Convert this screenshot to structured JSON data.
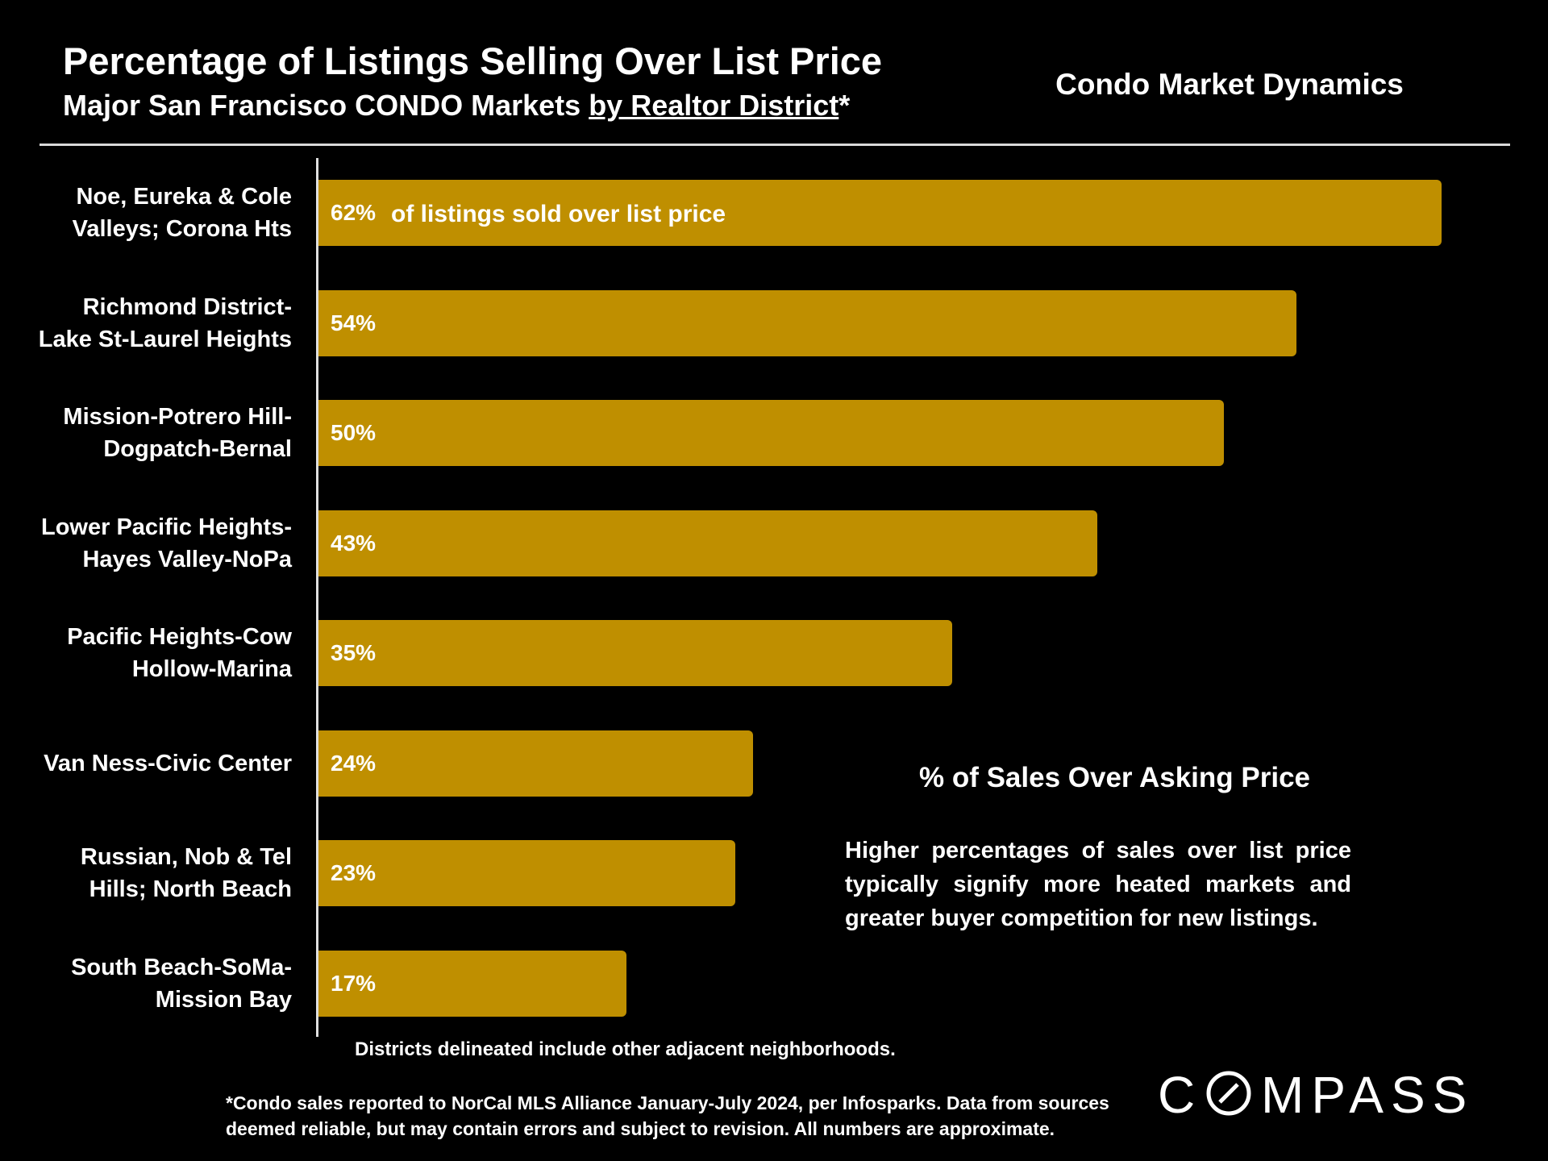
{
  "title": "Percentage of Listings Selling Over List Price",
  "subtitle_main": "Major San Francisco CONDO Markets ",
  "subtitle_link": "by Realtor District",
  "subtitle_end": "*",
  "header_right": "Condo Market Dynamics",
  "bar_note": "of listings sold over list price",
  "legend_title": "% of Sales Over Asking Price",
  "legend_note": "Higher percentages of sales over list price typically signify more heated markets and greater buyer competition for new listings.",
  "districts_note": "Districts delineated include other adjacent neighborhoods.",
  "footnote": "*Condo sales reported to NorCal MLS Alliance January-July 2024, per Infosparks. Data from sources deemed reliable, but may contain errors and subject to revision. All numbers are approximate.",
  "logo_text": "COMPASS",
  "colors": {
    "bar": "#bf8f00",
    "background": "#000000",
    "text": "#ffffff"
  },
  "chart_data": {
    "type": "bar",
    "orientation": "horizontal",
    "title": "Percentage of Listings Selling Over List Price",
    "categories": [
      [
        "Noe, Eureka & Cole",
        "Valleys; Corona Hts"
      ],
      [
        "Richmond District-",
        "Lake St-Laurel Heights"
      ],
      [
        "Mission-Potrero Hill-",
        "Dogpatch-Bernal"
      ],
      [
        "Lower Pacific Heights-",
        "Hayes Valley-NoPa"
      ],
      [
        "Pacific Heights-Cow",
        "Hollow-Marina"
      ],
      [
        "Van Ness-Civic Center"
      ],
      [
        "Russian, Nob & Tel",
        "Hills; North Beach"
      ],
      [
        "South Beach-SoMa-",
        "Mission Bay"
      ]
    ],
    "values": [
      62,
      54,
      50,
      43,
      35,
      24,
      23,
      17
    ],
    "value_labels": [
      "62%",
      "54%",
      "50%",
      "43%",
      "35%",
      "24%",
      "23%",
      "17%"
    ],
    "xlim": [
      0,
      62
    ],
    "grid": false
  }
}
